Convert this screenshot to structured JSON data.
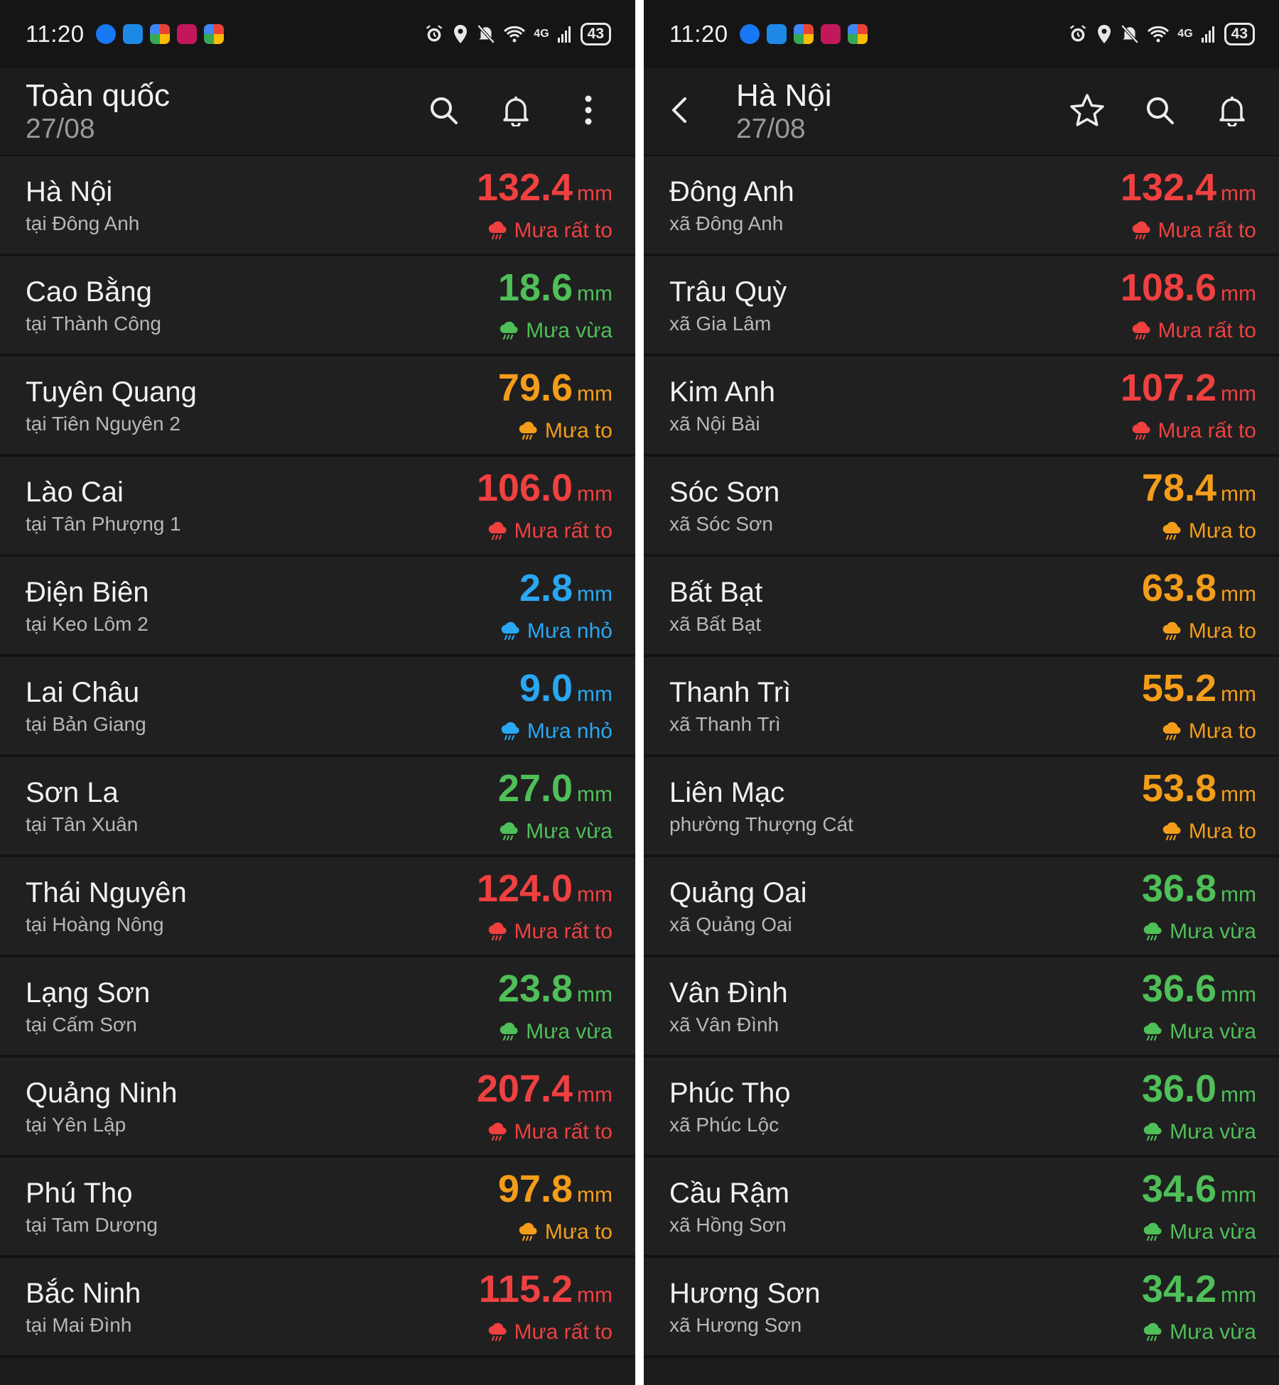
{
  "colors": {
    "very_heavy": "#f04040",
    "heavy": "#f49d1a",
    "moderate": "#4fbf58",
    "light": "#29a7f2"
  },
  "left": {
    "status": {
      "time": "11:20",
      "battery": "43",
      "network": "4G"
    },
    "header": {
      "title": "Toàn quốc",
      "date": "27/08"
    },
    "icons": [
      "search-icon",
      "bell-icon",
      "more-vert-icon"
    ],
    "rows": [
      {
        "name": "Hà Nội",
        "location": "tại Đông Anh",
        "value": "132.4",
        "unit": "mm",
        "level": "Mưa rất to",
        "level_key": "very_heavy"
      },
      {
        "name": "Cao Bằng",
        "location": "tại Thành Công",
        "value": "18.6",
        "unit": "mm",
        "level": "Mưa vừa",
        "level_key": "moderate"
      },
      {
        "name": "Tuyên Quang",
        "location": "tại Tiên Nguyên 2",
        "value": "79.6",
        "unit": "mm",
        "level": "Mưa to",
        "level_key": "heavy"
      },
      {
        "name": "Lào Cai",
        "location": "tại Tân Phượng 1",
        "value": "106.0",
        "unit": "mm",
        "level": "Mưa rất to",
        "level_key": "very_heavy"
      },
      {
        "name": "Điện Biên",
        "location": "tại Keo Lôm 2",
        "value": "2.8",
        "unit": "mm",
        "level": "Mưa nhỏ",
        "level_key": "light"
      },
      {
        "name": "Lai Châu",
        "location": "tại Bản Giang",
        "value": "9.0",
        "unit": "mm",
        "level": "Mưa nhỏ",
        "level_key": "light"
      },
      {
        "name": "Sơn La",
        "location": "tại Tân Xuân",
        "value": "27.0",
        "unit": "mm",
        "level": "Mưa vừa",
        "level_key": "moderate"
      },
      {
        "name": "Thái Nguyên",
        "location": "tại Hoàng Nông",
        "value": "124.0",
        "unit": "mm",
        "level": "Mưa rất to",
        "level_key": "very_heavy"
      },
      {
        "name": "Lạng Sơn",
        "location": "tại Cấm Sơn",
        "value": "23.8",
        "unit": "mm",
        "level": "Mưa vừa",
        "level_key": "moderate"
      },
      {
        "name": "Quảng Ninh",
        "location": "tại Yên Lập",
        "value": "207.4",
        "unit": "mm",
        "level": "Mưa rất to",
        "level_key": "very_heavy"
      },
      {
        "name": "Phú Thọ",
        "location": "tại Tam Dương",
        "value": "97.8",
        "unit": "mm",
        "level": "Mưa to",
        "level_key": "heavy"
      },
      {
        "name": "Bắc Ninh",
        "location": "tại Mai Đình",
        "value": "115.2",
        "unit": "mm",
        "level": "Mưa rất to",
        "level_key": "very_heavy"
      }
    ]
  },
  "right": {
    "status": {
      "time": "11:20",
      "battery": "43",
      "network": "4G"
    },
    "header": {
      "title": "Hà Nội",
      "date": "27/08"
    },
    "icons": [
      "back-arrow-icon",
      "star-icon",
      "search-icon",
      "bell-icon"
    ],
    "rows": [
      {
        "name": "Đông Anh",
        "location": "xã Đông Anh",
        "value": "132.4",
        "unit": "mm",
        "level": "Mưa rất to",
        "level_key": "very_heavy"
      },
      {
        "name": "Trâu Quỳ",
        "location": "xã Gia Lâm",
        "value": "108.6",
        "unit": "mm",
        "level": "Mưa rất to",
        "level_key": "very_heavy"
      },
      {
        "name": "Kim Anh",
        "location": "xã Nội Bài",
        "value": "107.2",
        "unit": "mm",
        "level": "Mưa rất to",
        "level_key": "very_heavy"
      },
      {
        "name": "Sóc Sơn",
        "location": "xã Sóc Sơn",
        "value": "78.4",
        "unit": "mm",
        "level": "Mưa to",
        "level_key": "heavy"
      },
      {
        "name": "Bất Bạt",
        "location": "xã Bất Bạt",
        "value": "63.8",
        "unit": "mm",
        "level": "Mưa to",
        "level_key": "heavy"
      },
      {
        "name": "Thanh Trì",
        "location": "xã Thanh Trì",
        "value": "55.2",
        "unit": "mm",
        "level": "Mưa to",
        "level_key": "heavy"
      },
      {
        "name": "Liên Mạc",
        "location": "phường Thượng Cát",
        "value": "53.8",
        "unit": "mm",
        "level": "Mưa to",
        "level_key": "heavy"
      },
      {
        "name": "Quảng Oai",
        "location": "xã Quảng Oai",
        "value": "36.8",
        "unit": "mm",
        "level": "Mưa vừa",
        "level_key": "moderate"
      },
      {
        "name": "Vân Đình",
        "location": "xã Vân Đình",
        "value": "36.6",
        "unit": "mm",
        "level": "Mưa vừa",
        "level_key": "moderate"
      },
      {
        "name": "Phúc Thọ",
        "location": "xã Phúc Lộc",
        "value": "36.0",
        "unit": "mm",
        "level": "Mưa vừa",
        "level_key": "moderate"
      },
      {
        "name": "Cầu Rậm",
        "location": "xã Hồng Sơn",
        "value": "34.6",
        "unit": "mm",
        "level": "Mưa vừa",
        "level_key": "moderate"
      },
      {
        "name": "Hương Sơn",
        "location": "xã Hương Sơn",
        "value": "34.2",
        "unit": "mm",
        "level": "Mưa vừa",
        "level_key": "moderate"
      }
    ]
  }
}
